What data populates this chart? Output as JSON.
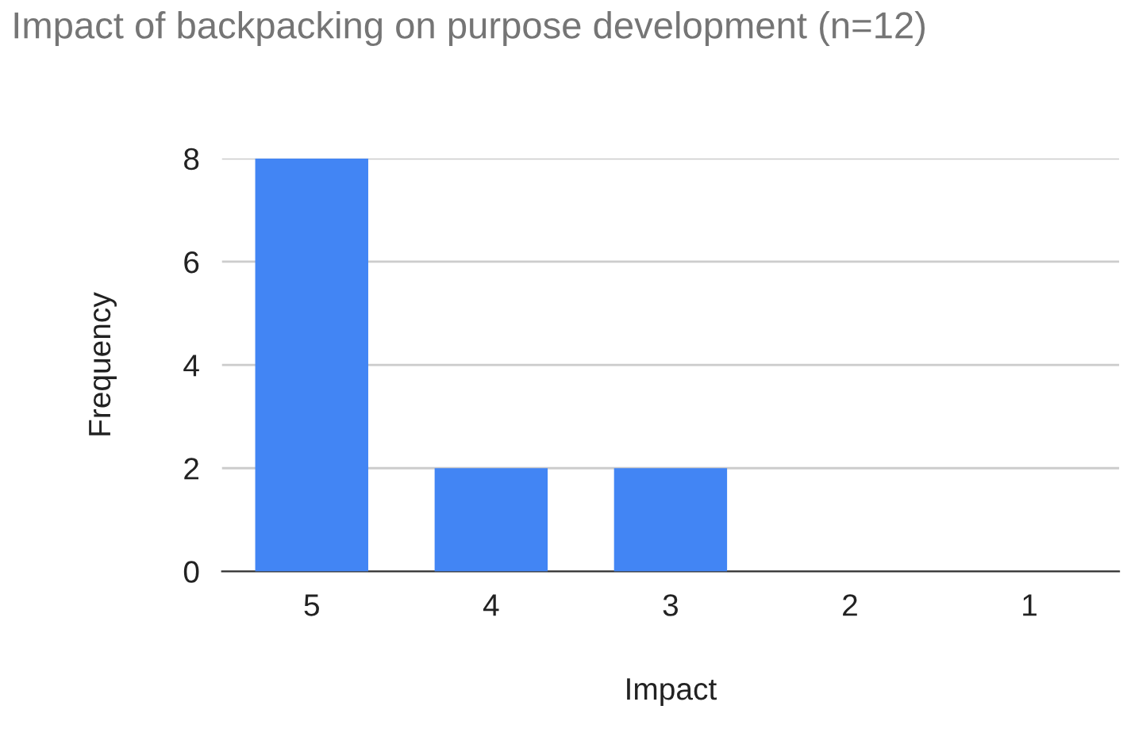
{
  "chart_data": {
    "type": "bar",
    "title": "Impact of backpacking on purpose development (n=12)",
    "xlabel": "Impact",
    "ylabel": "Frequency",
    "categories": [
      "5",
      "4",
      "3",
      "2",
      "1"
    ],
    "values": [
      8,
      2,
      2,
      0,
      0
    ],
    "color": "#4285f4",
    "ylim": [
      0,
      8
    ],
    "yticks": [
      0,
      2,
      4,
      6,
      8
    ],
    "grid": "y",
    "legend": false
  }
}
